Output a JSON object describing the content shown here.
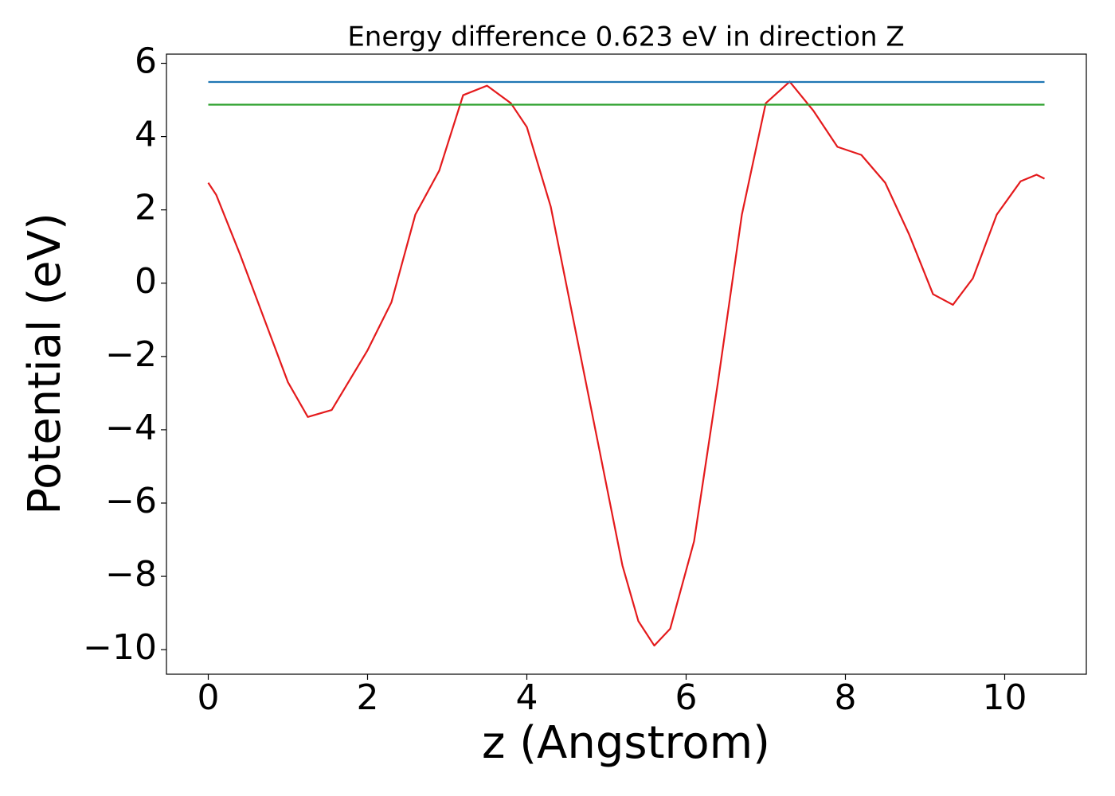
{
  "chart_data": {
    "type": "line",
    "title": "Energy difference 0.623 eV in direction Z",
    "x_label": "z (Angstrom)",
    "y_label": "Potential (eV)",
    "xlim": [
      -0.525,
      11.025
    ],
    "ylim": [
      -10.67,
      6.25
    ],
    "xticks": [
      0,
      2,
      4,
      6,
      8,
      10
    ],
    "yticks": [
      {
        "value": -10,
        "label": "−10"
      },
      {
        "value": -8,
        "label": "−8"
      },
      {
        "value": -6,
        "label": "−6"
      },
      {
        "value": -4,
        "label": "−4"
      },
      {
        "value": -2,
        "label": "−2"
      },
      0,
      2,
      4,
      6
    ],
    "series": [
      {
        "color": "#e41a1c",
        "x": [
          0,
          0.1,
          0.4,
          0.7,
          1.0,
          1.25,
          1.55,
          2.0,
          2.3,
          2.6,
          2.9,
          3.2,
          3.5,
          3.8,
          4.0,
          4.3,
          4.6,
          4.9,
          5.2,
          5.4,
          5.6,
          5.8,
          6.1,
          6.4,
          6.7,
          7.0,
          7.3,
          7.6,
          7.9,
          8.2,
          8.5,
          8.8,
          9.1,
          9.35,
          9.6,
          9.9,
          10.2,
          10.4,
          10.5
        ],
        "values": [
          2.74,
          2.41,
          0.78,
          -0.96,
          -2.7,
          -3.65,
          -3.46,
          -1.83,
          -0.52,
          1.87,
          3.07,
          5.13,
          5.39,
          4.91,
          4.26,
          2.09,
          -1.17,
          -4.43,
          -7.7,
          -9.22,
          -9.89,
          -9.43,
          -7.04,
          -2.7,
          1.87,
          4.91,
          5.5,
          4.7,
          3.72,
          3.5,
          2.74,
          1.33,
          -0.3,
          -0.59,
          0.13,
          1.87,
          2.78,
          2.96,
          2.85
        ]
      },
      {
        "color": "#1f77b4",
        "x": [
          0,
          10.5
        ],
        "values": [
          5.49,
          5.49
        ]
      },
      {
        "color": "#2ca02c",
        "x": [
          0,
          10.5
        ],
        "values": [
          4.87,
          4.87
        ]
      }
    ]
  }
}
